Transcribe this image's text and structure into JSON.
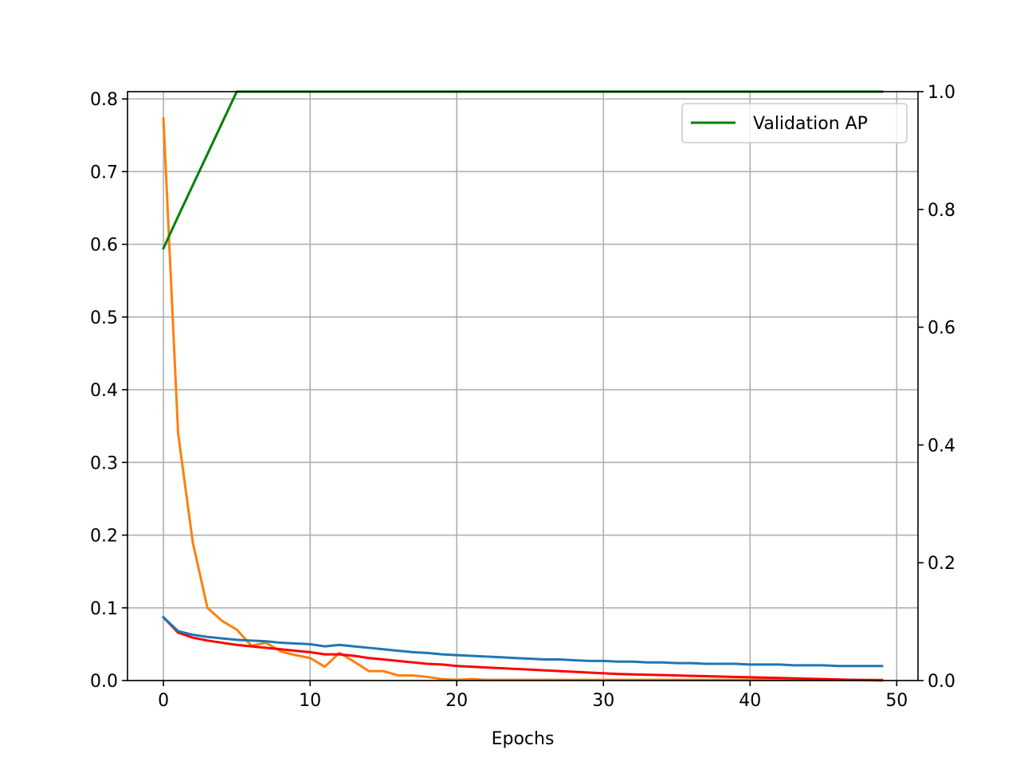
{
  "chart_data": {
    "type": "line",
    "title": "",
    "xlabel": "Epochs",
    "ylabel": "",
    "y2label": "",
    "xlim": [
      -2.45,
      51.45
    ],
    "ylim": [
      0,
      0.81
    ],
    "y2lim": [
      0,
      1.0
    ],
    "grid": true,
    "xticks": [
      "0",
      "10",
      "20",
      "30",
      "40",
      "50"
    ],
    "yticks": [
      "0.0",
      "0.1",
      "0.2",
      "0.3",
      "0.4",
      "0.5",
      "0.6",
      "0.7",
      "0.8"
    ],
    "y2ticks": [
      "0.0",
      "0.2",
      "0.4",
      "0.6",
      "0.8",
      "1.0"
    ],
    "legend": {
      "position": "upper right",
      "entries": [
        "Validation AP"
      ]
    },
    "series": [
      {
        "color": "#ff7f0e",
        "axis": "left",
        "x": [
          0,
          1,
          2,
          3,
          4,
          5,
          6,
          7,
          8,
          9,
          10,
          11,
          12,
          13,
          14,
          15,
          16,
          17,
          18,
          19,
          20,
          21,
          22,
          23,
          24,
          25,
          26,
          27,
          28,
          29,
          30,
          31,
          32,
          33,
          34,
          35,
          36,
          37,
          38,
          39,
          40,
          41,
          42,
          43,
          44,
          45,
          46,
          47,
          48,
          49
        ],
        "values": [
          0.773,
          0.34,
          0.19,
          0.1,
          0.082,
          0.07,
          0.048,
          0.052,
          0.04,
          0.035,
          0.031,
          0.019,
          0.038,
          0.026,
          0.013,
          0.013,
          0.007,
          0.007,
          0.005,
          0.002,
          0.001,
          0.002,
          0.001,
          0.001,
          0.001,
          0.001,
          0.001,
          0.001,
          0.001,
          0.001,
          0.001,
          0.001,
          0.001,
          0.001,
          0.001,
          0.001,
          0.001,
          0.001,
          0.001,
          0.001,
          0.001,
          0.001,
          0.001,
          0.001,
          0.001,
          0.001,
          0.001,
          0.001,
          0.001,
          0.001
        ]
      },
      {
        "color": "#ff0000",
        "axis": "left",
        "x": [
          0,
          1,
          2,
          3,
          4,
          5,
          6,
          7,
          8,
          9,
          10,
          11,
          12,
          13,
          14,
          15,
          16,
          17,
          18,
          19,
          20,
          21,
          22,
          23,
          24,
          25,
          26,
          27,
          28,
          29,
          30,
          31,
          32,
          33,
          34,
          35,
          36,
          37,
          38,
          39,
          40,
          41,
          42,
          43,
          44,
          45,
          46,
          47,
          48,
          49
        ],
        "values": [
          0.087,
          0.066,
          0.059,
          0.055,
          0.052,
          0.049,
          0.047,
          0.045,
          0.043,
          0.041,
          0.039,
          0.036,
          0.036,
          0.034,
          0.031,
          0.029,
          0.027,
          0.025,
          0.023,
          0.022,
          0.02,
          0.019,
          0.018,
          0.017,
          0.016,
          0.015,
          0.014,
          0.013,
          0.012,
          0.011,
          0.01,
          0.009,
          0.0085,
          0.008,
          0.0075,
          0.007,
          0.0065,
          0.006,
          0.0055,
          0.005,
          0.0045,
          0.004,
          0.0035,
          0.003,
          0.0025,
          0.002,
          0.0015,
          0.001,
          0.0005,
          0.0002
        ]
      },
      {
        "color": "#1f77b4",
        "axis": "left",
        "x": [
          0,
          1,
          2,
          3,
          4,
          5,
          6,
          7,
          8,
          9,
          10,
          11,
          12,
          13,
          14,
          15,
          16,
          17,
          18,
          19,
          20,
          21,
          22,
          23,
          24,
          25,
          26,
          27,
          28,
          29,
          30,
          31,
          32,
          33,
          34,
          35,
          36,
          37,
          38,
          39,
          40,
          41,
          42,
          43,
          44,
          45,
          46,
          47,
          48,
          49
        ],
        "values": [
          0.087,
          0.068,
          0.063,
          0.06,
          0.058,
          0.056,
          0.055,
          0.054,
          0.052,
          0.051,
          0.05,
          0.047,
          0.049,
          0.047,
          0.045,
          0.043,
          0.041,
          0.039,
          0.038,
          0.036,
          0.035,
          0.034,
          0.033,
          0.032,
          0.031,
          0.03,
          0.029,
          0.029,
          0.028,
          0.027,
          0.027,
          0.026,
          0.026,
          0.025,
          0.025,
          0.024,
          0.024,
          0.023,
          0.023,
          0.023,
          0.022,
          0.022,
          0.022,
          0.021,
          0.021,
          0.021,
          0.02,
          0.02,
          0.02,
          0.02
        ]
      },
      {
        "name": "Validation AP",
        "color": "#008000",
        "axis": "right",
        "x": [
          0,
          1,
          2,
          3,
          4,
          5,
          6,
          7,
          8,
          9,
          10,
          11,
          12,
          13,
          14,
          15,
          16,
          17,
          18,
          19,
          20,
          21,
          22,
          23,
          24,
          25,
          26,
          27,
          28,
          29,
          30,
          31,
          32,
          33,
          34,
          35,
          36,
          37,
          38,
          39,
          40,
          41,
          42,
          43,
          44,
          45,
          46,
          47,
          48,
          49
        ],
        "values": [
          0.734,
          0.788,
          0.841,
          0.894,
          0.947,
          1.0,
          1.0,
          1.0,
          1.0,
          1.0,
          1.0,
          1.0,
          1.0,
          1.0,
          1.0,
          1.0,
          1.0,
          1.0,
          1.0,
          1.0,
          1.0,
          1.0,
          1.0,
          1.0,
          1.0,
          1.0,
          1.0,
          1.0,
          1.0,
          1.0,
          1.0,
          1.0,
          1.0,
          1.0,
          1.0,
          1.0,
          1.0,
          1.0,
          1.0,
          1.0,
          1.0,
          1.0,
          1.0,
          1.0,
          1.0,
          1.0,
          1.0,
          1.0,
          1.0,
          1.0
        ]
      }
    ]
  }
}
